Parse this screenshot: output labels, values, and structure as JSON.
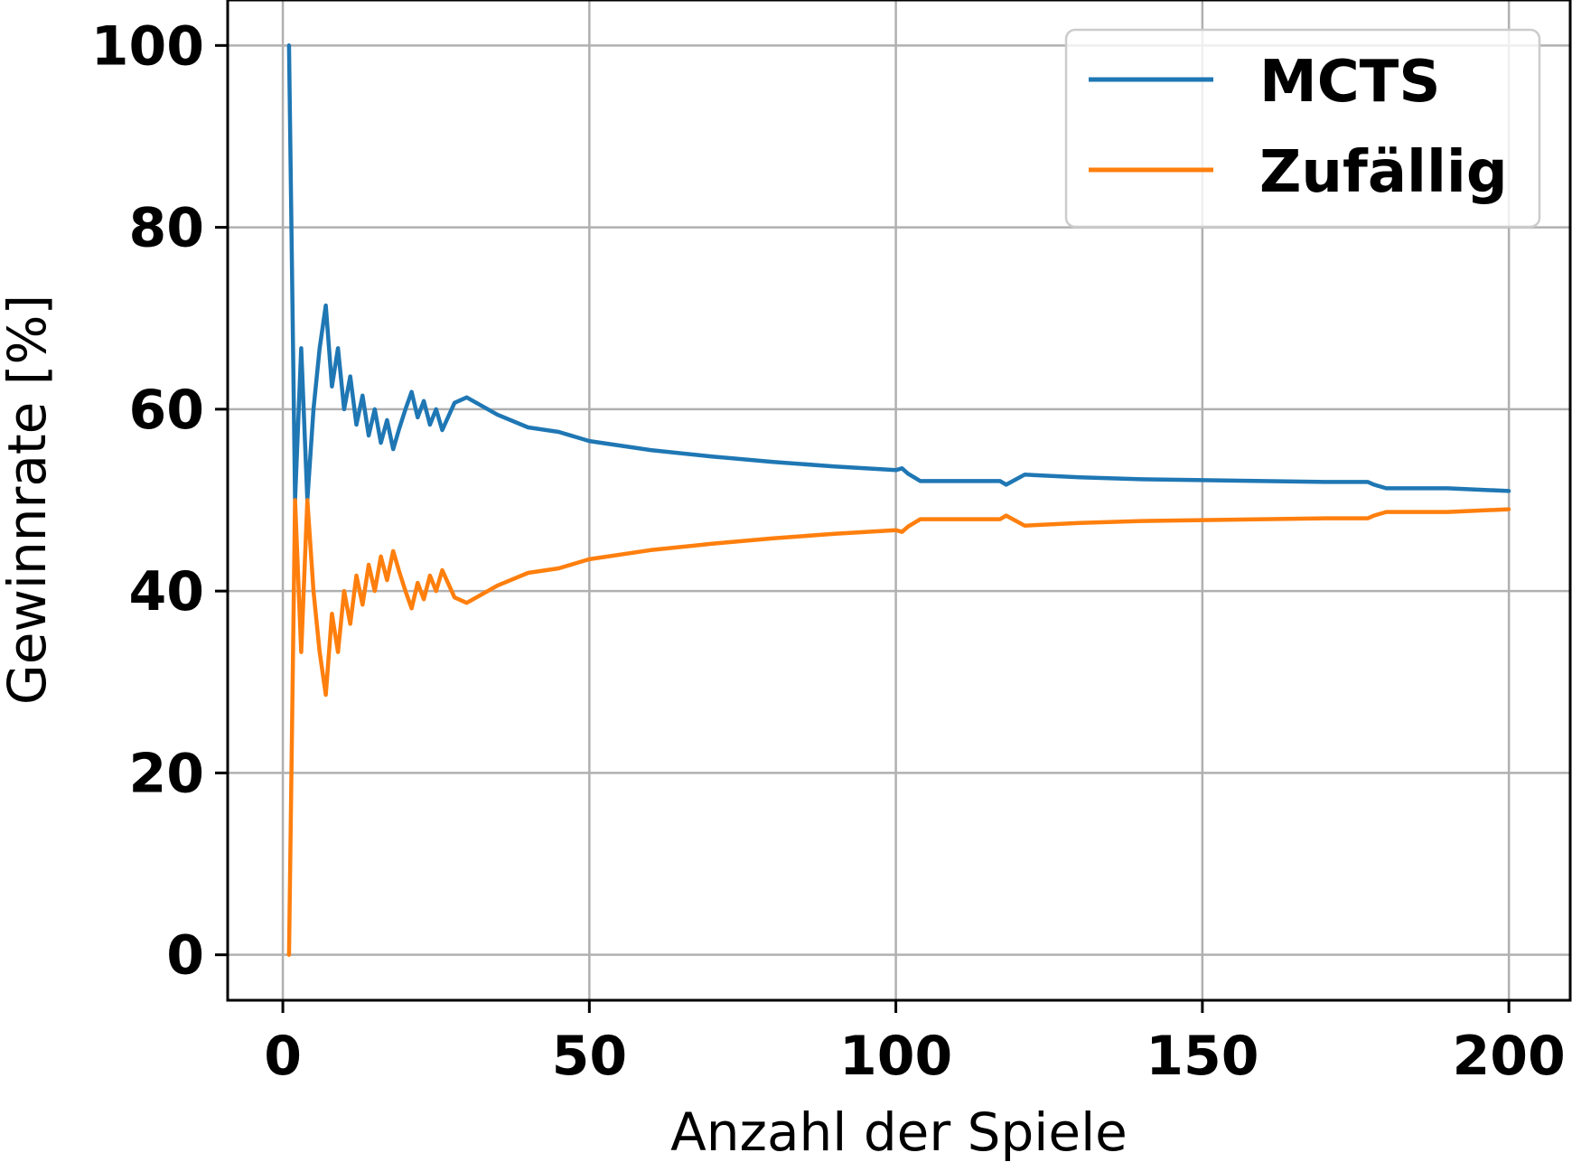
{
  "chart_data": {
    "type": "line",
    "xlabel": "Anzahl der Spiele",
    "ylabel": "Gewinnrate [%]",
    "xlim": [
      -9,
      210
    ],
    "ylim": [
      -5,
      105
    ],
    "xticks": [
      0,
      50,
      100,
      150,
      200
    ],
    "yticks": [
      0,
      20,
      40,
      60,
      80,
      100
    ],
    "grid": true,
    "legend_position": "top-right",
    "series": [
      {
        "name": "MCTS",
        "color": "#1f77b4",
        "x": [
          1,
          2,
          3,
          4,
          5,
          6,
          7,
          8,
          9,
          10,
          11,
          12,
          13,
          14,
          15,
          16,
          17,
          18,
          19,
          20,
          21,
          22,
          23,
          24,
          25,
          26,
          28,
          30,
          35,
          40,
          45,
          50,
          60,
          70,
          80,
          90,
          100,
          101,
          102,
          104,
          110,
          117,
          118,
          121,
          130,
          140,
          150,
          160,
          170,
          177,
          178,
          180,
          190,
          200
        ],
        "y": [
          100,
          50,
          66.7,
          50,
          60,
          66.7,
          71.4,
          62.5,
          66.7,
          60,
          63.6,
          58.3,
          61.5,
          57.1,
          60,
          56.3,
          58.8,
          55.6,
          57.9,
          60,
          61.9,
          59.1,
          60.9,
          58.3,
          60,
          57.7,
          60.7,
          61.3,
          59.4,
          58,
          57.5,
          56.5,
          55.5,
          54.8,
          54.2,
          53.7,
          53.3,
          53.5,
          52.9,
          52.1,
          52.1,
          52.1,
          51.7,
          52.8,
          52.5,
          52.3,
          52.2,
          52.1,
          52.0,
          52.0,
          51.7,
          51.3,
          51.3,
          51.0
        ]
      },
      {
        "name": "Zufällig",
        "color": "#ff7f0e",
        "x": [
          1,
          2,
          3,
          4,
          5,
          6,
          7,
          8,
          9,
          10,
          11,
          12,
          13,
          14,
          15,
          16,
          17,
          18,
          19,
          20,
          21,
          22,
          23,
          24,
          25,
          26,
          28,
          30,
          35,
          40,
          45,
          50,
          60,
          70,
          80,
          90,
          100,
          101,
          102,
          104,
          110,
          117,
          118,
          121,
          130,
          140,
          150,
          160,
          170,
          177,
          178,
          180,
          190,
          200
        ],
        "y": [
          0,
          50,
          33.3,
          50,
          40,
          33.3,
          28.6,
          37.5,
          33.3,
          40,
          36.4,
          41.7,
          38.5,
          42.9,
          40,
          43.8,
          41.2,
          44.4,
          42.1,
          40,
          38.1,
          40.9,
          39.1,
          41.7,
          40,
          42.3,
          39.3,
          38.7,
          40.6,
          42,
          42.5,
          43.5,
          44.5,
          45.2,
          45.8,
          46.3,
          46.7,
          46.5,
          47.1,
          47.9,
          47.9,
          47.9,
          48.3,
          47.2,
          47.5,
          47.7,
          47.8,
          47.9,
          48.0,
          48.0,
          48.3,
          48.7,
          48.7,
          49.0
        ]
      }
    ]
  }
}
